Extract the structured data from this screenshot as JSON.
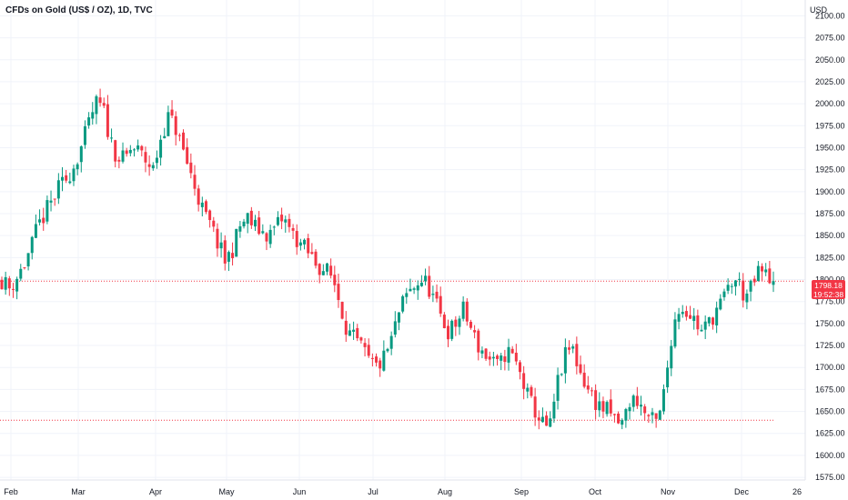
{
  "header": {
    "symbol": "CFDs on Gold (US$ / OZ), 1D, TVC",
    "currency": "USD"
  },
  "last_price": {
    "price": "1798.18",
    "countdown": "19:52:38"
  },
  "colors": {
    "up": "#089981",
    "down": "#f23645",
    "grid": "#f0f3fa",
    "axis_text": "#131722",
    "price_line": "#f23645",
    "support_line": "#f23645"
  },
  "chart_data": {
    "type": "candlestick",
    "title": "CFDs on Gold (US$ / OZ), 1D, TVC",
    "ylabel": "USD",
    "ylim": [
      1572,
      2118
    ],
    "y_ticks": [
      1575,
      1600,
      1625,
      1650,
      1675,
      1700,
      1725,
      1750,
      1775,
      1800,
      1825,
      1850,
      1875,
      1900,
      1925,
      1950,
      1975,
      2000,
      2025,
      2050,
      2075,
      2100
    ],
    "x_ticks": [
      "Feb",
      "Mar",
      "Apr",
      "May",
      "Jun",
      "Jul",
      "Aug",
      "Sep",
      "Oct",
      "Nov",
      "Dec",
      "26"
    ],
    "grid": true,
    "horizontal_lines": [
      {
        "name": "last-price",
        "value": 1798.18
      },
      {
        "name": "support",
        "value": 1640
      }
    ],
    "close_path": [
      1800,
      1790,
      1802,
      1815,
      1835,
      1860,
      1875,
      1890,
      1905,
      1915,
      1930,
      1950,
      1975,
      2000,
      1995,
      1960,
      1940,
      1935,
      1950,
      1945,
      1935,
      1925,
      1960,
      1985,
      1975,
      1950,
      1925,
      1900,
      1875,
      1860,
      1840,
      1820,
      1835,
      1860,
      1870,
      1860,
      1855,
      1850,
      1860,
      1870,
      1855,
      1845,
      1835,
      1825,
      1815,
      1810,
      1800,
      1770,
      1740,
      1730,
      1720,
      1705,
      1700,
      1710,
      1730,
      1760,
      1780,
      1790,
      1800,
      1795,
      1775,
      1755,
      1740,
      1750,
      1765,
      1745,
      1725,
      1715,
      1705,
      1700,
      1720,
      1710,
      1690,
      1665,
      1650,
      1635,
      1630,
      1680,
      1710,
      1725,
      1700,
      1680,
      1665,
      1655,
      1650,
      1640,
      1635,
      1660,
      1665,
      1650,
      1640,
      1635,
      1680,
      1745,
      1770,
      1765,
      1755,
      1740,
      1750,
      1765,
      1775,
      1795,
      1800,
      1780,
      1790,
      1810,
      1805,
      1798
    ]
  }
}
